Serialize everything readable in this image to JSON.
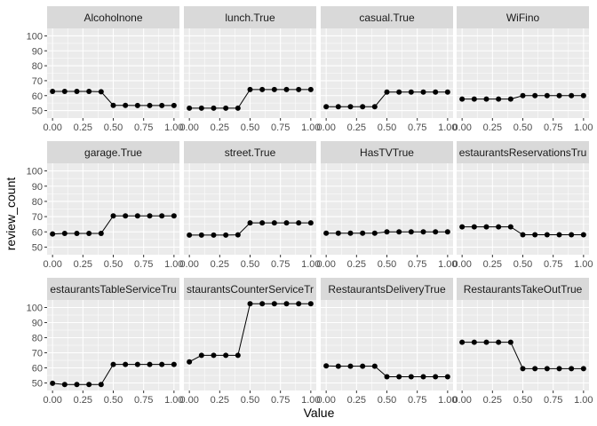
{
  "chart_data": {
    "type": "line",
    "facet_layout": "3x4 grid",
    "xlabel": "Value",
    "ylabel": "review_count",
    "xlim": [
      0,
      1
    ],
    "ylim": [
      45,
      105
    ],
    "x_ticks": [
      0,
      0.25,
      0.5,
      0.75,
      1
    ],
    "x_tick_labels": [
      "0.00",
      "0.25",
      "0.50",
      "0.75",
      "1.00"
    ],
    "y_ticks": [
      50,
      60,
      70,
      80,
      90,
      100
    ],
    "y_tick_labels": [
      "50",
      "60",
      "70",
      "80",
      "90",
      "100"
    ],
    "x": [
      0,
      0.1,
      0.2,
      0.3,
      0.4,
      0.5,
      0.6,
      0.7,
      0.8,
      0.9,
      1.0
    ],
    "grid": true,
    "point_color": "#000000",
    "panels": [
      {
        "title": "AlcoholnoneA",
        "display_title": "Alcoholnone",
        "values": [
          62.8,
          62.8,
          62.8,
          62.8,
          62.6,
          53.5,
          53.5,
          53.4,
          53.4,
          53.4,
          53.4
        ]
      },
      {
        "title": "lunch.True",
        "values": [
          51.6,
          51.6,
          51.6,
          51.6,
          51.6,
          64.1,
          64.1,
          64.1,
          64.1,
          64.1,
          64.1
        ]
      },
      {
        "title": "casual.True",
        "values": [
          52.6,
          52.6,
          52.6,
          52.6,
          52.6,
          62.4,
          62.4,
          62.4,
          62.4,
          62.4,
          62.4
        ]
      },
      {
        "title": "WiFino",
        "values": [
          57.7,
          57.7,
          57.7,
          57.7,
          57.7,
          60.0,
          60.0,
          60.0,
          60.0,
          60.0,
          60.0
        ]
      },
      {
        "title": "garage.True",
        "values": [
          58.6,
          59.0,
          59.0,
          59.0,
          59.0,
          70.5,
          70.5,
          70.5,
          70.5,
          70.5,
          70.5
        ]
      },
      {
        "title": "street.True",
        "values": [
          57.9,
          57.9,
          57.9,
          57.9,
          58.0,
          65.9,
          65.9,
          65.9,
          65.9,
          65.9,
          65.9
        ]
      },
      {
        "title": "HasTVTrue",
        "values": [
          59.1,
          59.1,
          59.1,
          59.1,
          59.1,
          60.0,
          60.0,
          60.0,
          60.0,
          60.0,
          60.0
        ]
      },
      {
        "title": "RestaurantsReservationsTrue",
        "display_title": "estaurantsReservationsTru",
        "values": [
          63.3,
          63.3,
          63.3,
          63.3,
          63.3,
          58.1,
          58.1,
          58.1,
          58.1,
          58.1,
          58.1
        ]
      },
      {
        "title": "RestaurantsTableServiceTrue",
        "display_title": "estaurantsTableServiceTru",
        "values": [
          49.8,
          49.0,
          49.0,
          49.0,
          49.0,
          62.3,
          62.3,
          62.3,
          62.3,
          62.3,
          62.3
        ]
      },
      {
        "title": "RestaurantsCounterServiceTrue",
        "display_title": "staurantsCounterServiceTr",
        "values": [
          64.0,
          68.3,
          68.3,
          68.3,
          68.3,
          102.5,
          102.5,
          102.5,
          102.5,
          102.5,
          102.5
        ]
      },
      {
        "title": "RestaurantsDeliveryTrue",
        "values": [
          61.3,
          61.1,
          61.1,
          61.1,
          61.1,
          54.1,
          54.1,
          54.1,
          54.1,
          54.1,
          54.1
        ]
      },
      {
        "title": "RestaurantsTakeOutTrue",
        "values": [
          77.0,
          77.0,
          77.0,
          77.0,
          77.0,
          59.5,
          59.5,
          59.5,
          59.5,
          59.5,
          59.5
        ]
      }
    ]
  }
}
